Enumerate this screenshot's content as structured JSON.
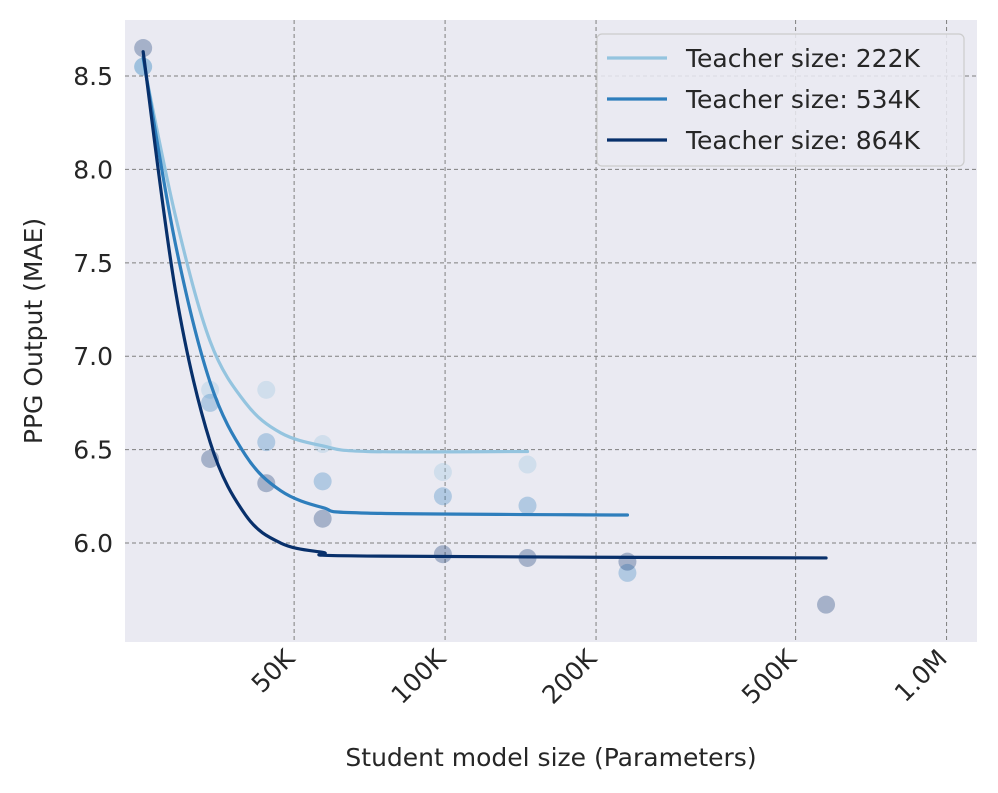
{
  "chart_data": {
    "type": "line",
    "xlabel": "Student model size (Parameters)",
    "ylabel": "PPG Output (MAE)",
    "x_scale": "log",
    "xlim": [
      23000,
      1150000
    ],
    "ylim": [
      5.47,
      8.8
    ],
    "x_ticks": [
      {
        "value": 50000,
        "label": "50K"
      },
      {
        "value": 100000,
        "label": "100K"
      },
      {
        "value": 200000,
        "label": "200K"
      },
      {
        "value": 500000,
        "label": "500K"
      },
      {
        "value": 1000000,
        "label": "1.0M"
      }
    ],
    "y_ticks": [
      {
        "value": 6.0,
        "label": "6.0"
      },
      {
        "value": 6.5,
        "label": "6.5"
      },
      {
        "value": 7.0,
        "label": "7.0"
      },
      {
        "value": 7.5,
        "label": "7.5"
      },
      {
        "value": 8.0,
        "label": "8.0"
      },
      {
        "value": 8.5,
        "label": "8.5"
      }
    ],
    "grid": true,
    "legend_position": "top-right",
    "series": [
      {
        "name": "Teacher size: 222K",
        "color": "#94c4df",
        "points": [
          [
            25000,
            8.55
          ],
          [
            34000,
            6.82
          ],
          [
            44000,
            6.82
          ],
          [
            57000,
            6.53
          ],
          [
            99000,
            6.38
          ],
          [
            146000,
            6.42
          ]
        ],
        "fit": [
          [
            25000,
            8.58
          ],
          [
            29000,
            7.75
          ],
          [
            34000,
            7.08
          ],
          [
            40000,
            6.75
          ],
          [
            47000,
            6.59
          ],
          [
            57000,
            6.52
          ],
          [
            70000,
            6.49
          ],
          [
            146000,
            6.49
          ]
        ]
      },
      {
        "name": "Teacher size: 534K",
        "color": "#2e7ebc",
        "points": [
          [
            25000,
            8.55
          ],
          [
            34000,
            6.75
          ],
          [
            44000,
            6.54
          ],
          [
            57000,
            6.33
          ],
          [
            99000,
            6.25
          ],
          [
            146000,
            6.2
          ],
          [
            231000,
            5.84
          ]
        ],
        "fit": [
          [
            25000,
            8.6
          ],
          [
            29000,
            7.6
          ],
          [
            34000,
            6.86
          ],
          [
            40000,
            6.47
          ],
          [
            47000,
            6.28
          ],
          [
            57000,
            6.19
          ],
          [
            70000,
            6.16
          ],
          [
            231000,
            6.15
          ]
        ]
      },
      {
        "name": "Teacher size: 864K",
        "color": "#08306b",
        "points": [
          [
            25000,
            8.65
          ],
          [
            34000,
            6.45
          ],
          [
            44000,
            6.32
          ],
          [
            57000,
            6.13
          ],
          [
            99000,
            5.94
          ],
          [
            146000,
            5.92
          ],
          [
            231000,
            5.9
          ],
          [
            575000,
            5.67
          ]
        ],
        "fit": [
          [
            25000,
            8.63
          ],
          [
            29000,
            7.35
          ],
          [
            34000,
            6.54
          ],
          [
            40000,
            6.15
          ],
          [
            47000,
            6.0
          ],
          [
            57000,
            5.95
          ],
          [
            70000,
            5.93
          ],
          [
            575000,
            5.92
          ]
        ]
      }
    ]
  }
}
